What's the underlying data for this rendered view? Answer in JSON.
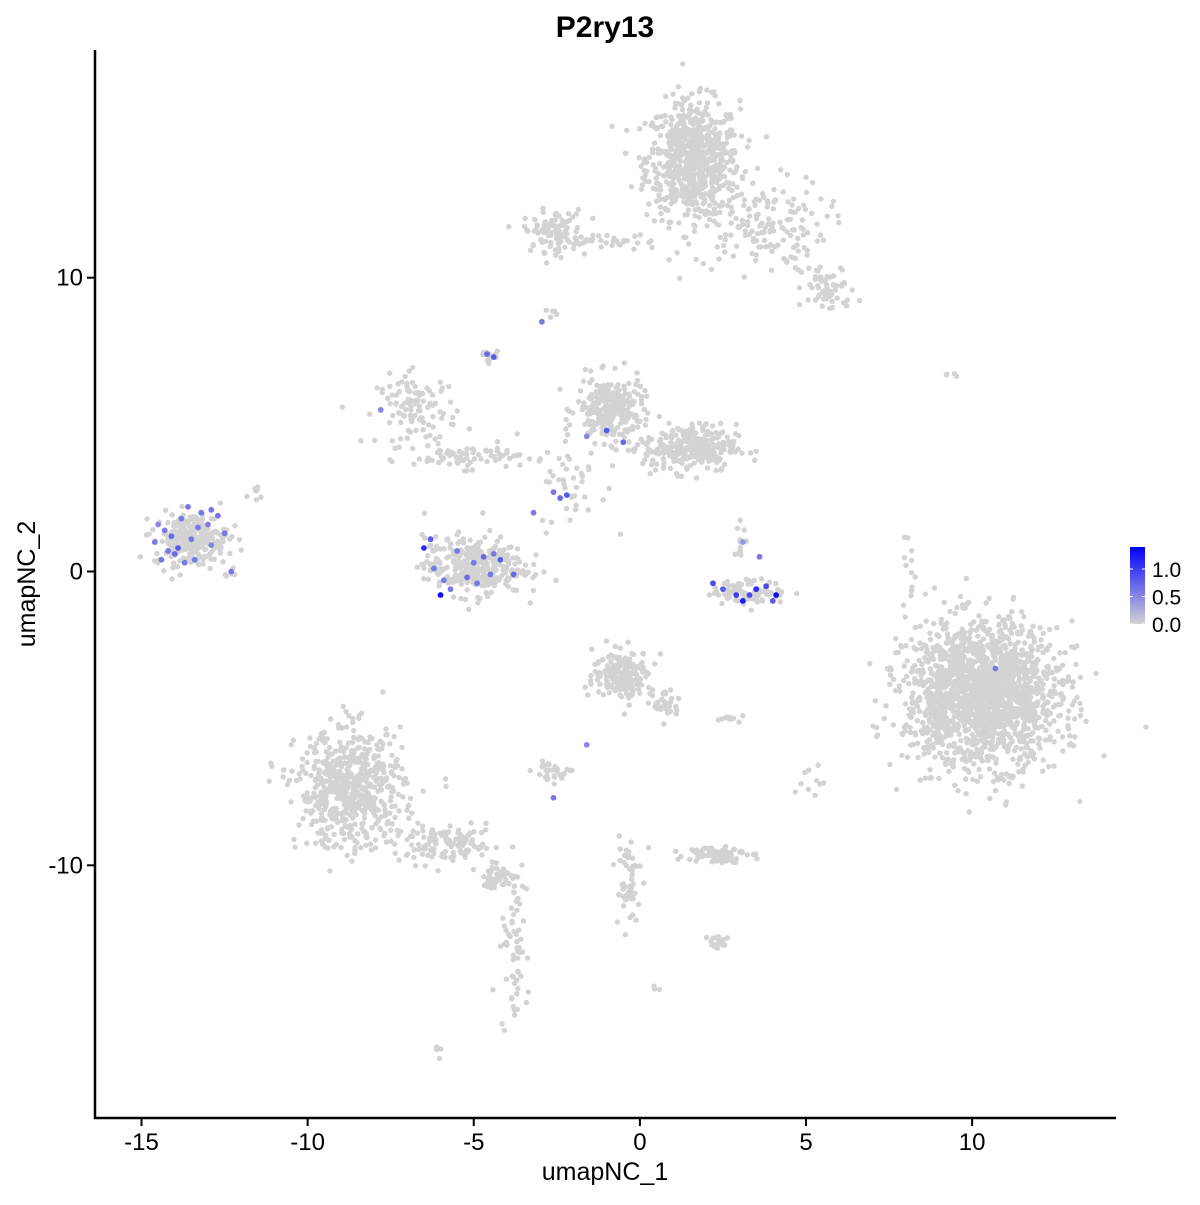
{
  "chart_data": {
    "type": "scatter",
    "title": "P2ry13",
    "xlabel": "umapNC_1",
    "ylabel": "umapNC_2",
    "xlim": [
      -16.4,
      14.3
    ],
    "ylim": [
      -18.6,
      17.75
    ],
    "xticks": [
      -15,
      -10,
      -5,
      0,
      5,
      10
    ],
    "yticks": [
      -10,
      0,
      10
    ],
    "grid": false,
    "legend": {
      "placement": "right",
      "type": "colorbar",
      "ticks": [
        0.0,
        0.5,
        1.0
      ],
      "tick_labels": [
        "0.0",
        "0.5",
        "1.0"
      ],
      "range": [
        0,
        1.4
      ],
      "low_color": "#d3d3d3",
      "high_color": "#0000ff"
    },
    "unexpressed_clusters": [
      {
        "center": [
          1.6,
          14.0
        ],
        "spread": [
          0.7,
          1.0
        ],
        "n": 700
      },
      {
        "center": [
          3.6,
          11.8
        ],
        "spread": [
          1.0,
          0.8
        ],
        "n": 160
      },
      {
        "center": [
          5.7,
          9.6
        ],
        "spread": [
          0.4,
          0.4
        ],
        "n": 60
      },
      {
        "center": [
          -2.6,
          11.6
        ],
        "spread": [
          0.45,
          0.35
        ],
        "n": 90
      },
      {
        "center": [
          -1.2,
          11.2
        ],
        "spread": [
          0.9,
          0.15
        ],
        "n": 40
      },
      {
        "center": [
          -6.7,
          5.5
        ],
        "spread": [
          0.6,
          0.6
        ],
        "n": 110
      },
      {
        "center": [
          -5.2,
          3.9
        ],
        "spread": [
          0.8,
          0.2
        ],
        "n": 70
      },
      {
        "center": [
          -0.9,
          5.5
        ],
        "spread": [
          0.5,
          0.55
        ],
        "n": 260
      },
      {
        "center": [
          1.5,
          4.2
        ],
        "spread": [
          0.7,
          0.4
        ],
        "n": 280
      },
      {
        "center": [
          -2.0,
          3.0
        ],
        "spread": [
          0.5,
          0.8
        ],
        "n": 40
      },
      {
        "center": [
          -13.5,
          1.1
        ],
        "spread": [
          0.55,
          0.45
        ],
        "n": 250
      },
      {
        "center": [
          -5.0,
          0.2
        ],
        "spread": [
          0.75,
          0.5
        ],
        "n": 330
      },
      {
        "center": [
          3.3,
          -0.7
        ],
        "spread": [
          0.55,
          0.2
        ],
        "n": 90
      },
      {
        "center": [
          3.1,
          1.1
        ],
        "spread": [
          0.15,
          0.3
        ],
        "n": 12
      },
      {
        "center": [
          10.3,
          -4.2
        ],
        "spread": [
          1.15,
          1.2
        ],
        "n": 1800
      },
      {
        "center": [
          -0.5,
          -3.5
        ],
        "spread": [
          0.45,
          0.4
        ],
        "n": 200
      },
      {
        "center": [
          0.8,
          -4.5
        ],
        "spread": [
          0.2,
          0.3
        ],
        "n": 30
      },
      {
        "center": [
          -8.7,
          -7.4
        ],
        "spread": [
          0.8,
          1.0
        ],
        "n": 600
      },
      {
        "center": [
          -5.8,
          -9.3
        ],
        "spread": [
          0.8,
          0.3
        ],
        "n": 120
      },
      {
        "center": [
          -4.3,
          -10.4
        ],
        "spread": [
          0.3,
          0.2
        ],
        "n": 50
      },
      {
        "center": [
          -3.8,
          -13.0
        ],
        "spread": [
          0.2,
          1.3
        ],
        "n": 60
      },
      {
        "center": [
          -2.6,
          -6.8
        ],
        "spread": [
          0.3,
          0.15
        ],
        "n": 35
      },
      {
        "center": [
          2.3,
          -9.6
        ],
        "spread": [
          0.45,
          0.15
        ],
        "n": 80
      },
      {
        "center": [
          -0.4,
          -10.6
        ],
        "spread": [
          0.2,
          1.0
        ],
        "n": 50
      },
      {
        "center": [
          2.3,
          -12.6
        ],
        "spread": [
          0.2,
          0.15
        ],
        "n": 20
      },
      {
        "center": [
          8.1,
          -0.2
        ],
        "spread": [
          0.2,
          0.6
        ],
        "n": 12
      },
      {
        "center": [
          -11.6,
          2.7
        ],
        "spread": [
          0.15,
          0.15
        ],
        "n": 8
      },
      {
        "center": [
          -12.3,
          0.0
        ],
        "spread": [
          0.1,
          0.1
        ],
        "n": 6
      },
      {
        "center": [
          -4.5,
          7.3
        ],
        "spread": [
          0.15,
          0.15
        ],
        "n": 12
      },
      {
        "center": [
          -2.7,
          8.8
        ],
        "spread": [
          0.1,
          0.15
        ],
        "n": 5
      },
      {
        "center": [
          9.4,
          6.7
        ],
        "spread": [
          0.1,
          0.05
        ],
        "n": 4
      },
      {
        "center": [
          5.1,
          -7.3
        ],
        "spread": [
          0.2,
          0.4
        ],
        "n": 10
      },
      {
        "center": [
          2.8,
          -5.0
        ],
        "spread": [
          0.3,
          0.05
        ],
        "n": 10
      },
      {
        "center": [
          -6.0,
          -16.3
        ],
        "spread": [
          0.1,
          0.1
        ],
        "n": 4
      },
      {
        "center": [
          0.6,
          -14.2
        ],
        "spread": [
          0.1,
          0.1
        ],
        "n": 3
      }
    ],
    "expressed_points": [
      {
        "x": -14.6,
        "y": 1.0,
        "v": 0.6
      },
      {
        "x": -14.3,
        "y": 1.4,
        "v": 0.6
      },
      {
        "x": -14.0,
        "y": 0.6,
        "v": 0.7
      },
      {
        "x": -13.8,
        "y": 1.8,
        "v": 0.6
      },
      {
        "x": -13.5,
        "y": 1.1,
        "v": 0.6
      },
      {
        "x": -13.2,
        "y": 2.0,
        "v": 0.6
      },
      {
        "x": -12.9,
        "y": 2.1,
        "v": 0.6
      },
      {
        "x": -13.0,
        "y": 1.6,
        "v": 0.6
      },
      {
        "x": -14.4,
        "y": 0.4,
        "v": 0.6
      },
      {
        "x": -14.1,
        "y": 1.2,
        "v": 0.7
      },
      {
        "x": -13.7,
        "y": 0.3,
        "v": 0.6
      },
      {
        "x": -13.3,
        "y": 1.5,
        "v": 0.6
      },
      {
        "x": -12.7,
        "y": 1.9,
        "v": 0.6
      },
      {
        "x": -13.9,
        "y": 0.8,
        "v": 0.8
      },
      {
        "x": -14.2,
        "y": 0.7,
        "v": 0.6
      },
      {
        "x": -13.6,
        "y": 2.2,
        "v": 0.6
      },
      {
        "x": -12.3,
        "y": 0.0,
        "v": 0.6
      },
      {
        "x": -12.9,
        "y": 0.9,
        "v": 0.5
      },
      {
        "x": -14.5,
        "y": 1.6,
        "v": 0.5
      },
      {
        "x": -13.4,
        "y": 0.4,
        "v": 0.6
      },
      {
        "x": -12.5,
        "y": 1.3,
        "v": 0.6
      },
      {
        "x": -6.5,
        "y": 0.8,
        "v": 1.1
      },
      {
        "x": -6.3,
        "y": 1.1,
        "v": 0.8
      },
      {
        "x": -6.0,
        "y": -0.8,
        "v": 1.3
      },
      {
        "x": -5.9,
        "y": -0.3,
        "v": 0.6
      },
      {
        "x": -5.5,
        "y": 0.7,
        "v": 0.6
      },
      {
        "x": -5.2,
        "y": -0.2,
        "v": 0.7
      },
      {
        "x": -5.0,
        "y": 0.3,
        "v": 0.6
      },
      {
        "x": -4.7,
        "y": 0.5,
        "v": 0.7
      },
      {
        "x": -4.5,
        "y": -0.1,
        "v": 0.6
      },
      {
        "x": -4.2,
        "y": 0.4,
        "v": 0.8
      },
      {
        "x": -3.8,
        "y": -0.1,
        "v": 0.7
      },
      {
        "x": -6.2,
        "y": 0.1,
        "v": 0.6
      },
      {
        "x": -5.7,
        "y": -0.6,
        "v": 0.6
      },
      {
        "x": -4.9,
        "y": -0.4,
        "v": 0.6
      },
      {
        "x": -4.4,
        "y": 0.6,
        "v": 0.6
      },
      {
        "x": 2.2,
        "y": -0.4,
        "v": 0.9
      },
      {
        "x": 2.5,
        "y": -0.6,
        "v": 0.8
      },
      {
        "x": 2.9,
        "y": -0.8,
        "v": 1.0
      },
      {
        "x": 3.1,
        "y": -1.0,
        "v": 1.2
      },
      {
        "x": 3.3,
        "y": -0.8,
        "v": 0.9
      },
      {
        "x": 3.5,
        "y": -0.6,
        "v": 1.1
      },
      {
        "x": 3.8,
        "y": -0.5,
        "v": 0.9
      },
      {
        "x": 4.1,
        "y": -0.8,
        "v": 1.3
      },
      {
        "x": 4.0,
        "y": -1.0,
        "v": 0.8
      },
      {
        "x": 3.6,
        "y": 0.5,
        "v": 0.6
      },
      {
        "x": 3.1,
        "y": 1.0,
        "v": 0.4
      },
      {
        "x": -2.95,
        "y": 8.5,
        "v": 0.6
      },
      {
        "x": -4.6,
        "y": 7.4,
        "v": 0.7
      },
      {
        "x": -4.4,
        "y": 7.3,
        "v": 0.8
      },
      {
        "x": -7.8,
        "y": 5.5,
        "v": 0.5
      },
      {
        "x": -1.0,
        "y": 4.8,
        "v": 0.8
      },
      {
        "x": -1.6,
        "y": 4.6,
        "v": 0.5
      },
      {
        "x": -0.5,
        "y": 4.4,
        "v": 0.7
      },
      {
        "x": -2.4,
        "y": 2.5,
        "v": 0.7
      },
      {
        "x": -2.2,
        "y": 2.6,
        "v": 0.8
      },
      {
        "x": -2.6,
        "y": 2.7,
        "v": 0.6
      },
      {
        "x": -3.2,
        "y": 2.0,
        "v": 0.6
      },
      {
        "x": 10.7,
        "y": -3.3,
        "v": 0.6
      },
      {
        "x": -1.6,
        "y": -5.9,
        "v": 0.5
      },
      {
        "x": -2.6,
        "y": -7.7,
        "v": 0.6
      }
    ]
  }
}
